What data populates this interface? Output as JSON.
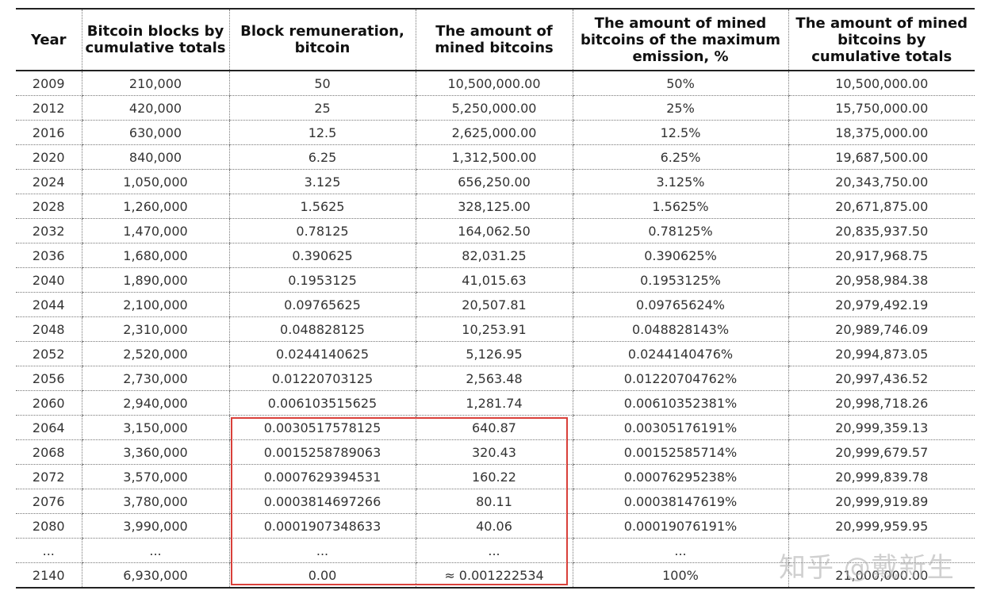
{
  "headers": [
    "Year",
    "Bitcoin blocks by cumulative totals",
    "Block remuneration, bitcoin",
    "The amount of mined bitcoins",
    "The amount of mined bitcoins of the maximum emission, %",
    "The amount of mined bitcoins by cumulative totals"
  ],
  "rows": [
    [
      "2009",
      "210,000",
      "50",
      "10,500,000.00",
      "50%",
      "10,500,000.00"
    ],
    [
      "2012",
      "420,000",
      "25",
      "5,250,000.00",
      "25%",
      "15,750,000.00"
    ],
    [
      "2016",
      "630,000",
      "12.5",
      "2,625,000.00",
      "12.5%",
      "18,375,000.00"
    ],
    [
      "2020",
      "840,000",
      "6.25",
      "1,312,500.00",
      "6.25%",
      "19,687,500.00"
    ],
    [
      "2024",
      "1,050,000",
      "3.125",
      "656,250.00",
      "3.125%",
      "20,343,750.00"
    ],
    [
      "2028",
      "1,260,000",
      "1.5625",
      "328,125.00",
      "1.5625%",
      "20,671,875.00"
    ],
    [
      "2032",
      "1,470,000",
      "0.78125",
      "164,062.50",
      "0.78125%",
      "20,835,937.50"
    ],
    [
      "2036",
      "1,680,000",
      "0.390625",
      "82,031.25",
      "0.390625%",
      "20,917,968.75"
    ],
    [
      "2040",
      "1,890,000",
      "0.1953125",
      "41,015.63",
      "0.1953125%",
      "20,958,984.38"
    ],
    [
      "2044",
      "2,100,000",
      "0.09765625",
      "20,507.81",
      "0.09765624%",
      "20,979,492.19"
    ],
    [
      "2048",
      "2,310,000",
      "0.048828125",
      "10,253.91",
      "0.048828143%",
      "20,989,746.09"
    ],
    [
      "2052",
      "2,520,000",
      "0.0244140625",
      "5,126.95",
      "0.0244140476%",
      "20,994,873.05"
    ],
    [
      "2056",
      "2,730,000",
      "0.01220703125",
      "2,563.48",
      "0.01220704762%",
      "20,997,436.52"
    ],
    [
      "2060",
      "2,940,000",
      "0.006103515625",
      "1,281.74",
      "0.00610352381%",
      "20,998,718.26"
    ],
    [
      "2064",
      "3,150,000",
      "0.0030517578125",
      "640.87",
      "0.00305176191%",
      "20,999,359.13"
    ],
    [
      "2068",
      "3,360,000",
      "0.0015258789063",
      "320.43",
      "0.00152585714%",
      "20,999,679.57"
    ],
    [
      "2072",
      "3,570,000",
      "0.0007629394531",
      "160.22",
      "0.00076295238%",
      "20,999,839.78"
    ],
    [
      "2076",
      "3,780,000",
      "0.0003814697266",
      "80.11",
      "0.00038147619%",
      "20,999,919.89"
    ],
    [
      "2080",
      "3,990,000",
      "0.0001907348633",
      "40.06",
      "0.00019076191%",
      "20,999,959.95"
    ],
    [
      "...",
      "...",
      "...",
      "...",
      "...",
      ""
    ],
    [
      "2140",
      "6,930,000",
      "0.00",
      "≈ 0.001222534",
      "100%",
      "21,000,000.00"
    ]
  ],
  "watermark": "知乎 @戴新生",
  "colors": {
    "highlight": "#d9403a",
    "rule": "#222222"
  }
}
